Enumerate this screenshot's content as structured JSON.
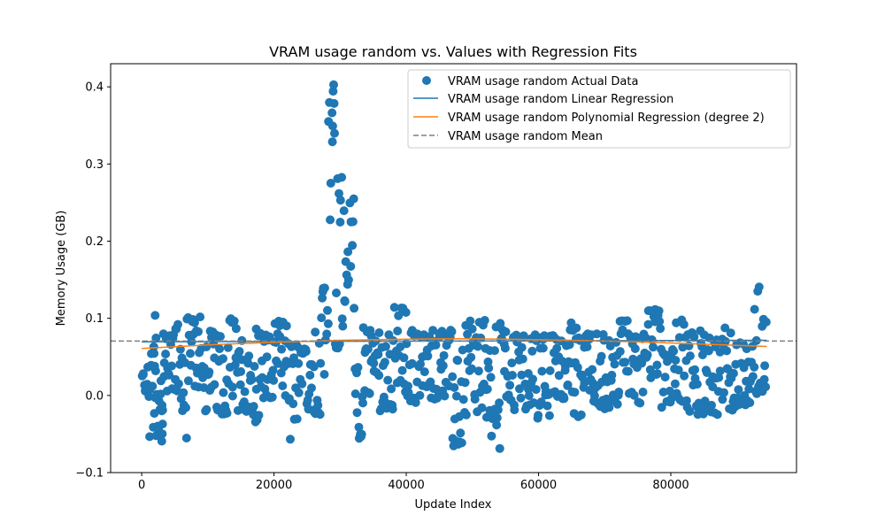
{
  "chart_data": {
    "type": "scatter",
    "title": "VRAM usage random vs. Values with Regression Fits",
    "xlabel": "Update Index",
    "ylabel": "Memory Usage (GB)",
    "xlim": [
      -4700,
      99000
    ],
    "ylim": [
      -0.1,
      0.43
    ],
    "x_ticks": [
      0,
      20000,
      40000,
      60000,
      80000
    ],
    "y_ticks": [
      -0.1,
      0.0,
      0.1,
      0.2,
      0.3,
      0.4
    ],
    "x_tick_labels": [
      "0",
      "20000",
      "40000",
      "60000",
      "80000"
    ],
    "y_tick_labels": [
      "−0.1",
      "0.0",
      "0.1",
      "0.2",
      "0.3",
      "0.4"
    ],
    "grid": false,
    "legend_position": "top-right",
    "legend": [
      "VRAM usage random Actual Data",
      "VRAM usage random Linear Regression",
      "VRAM usage random Polynomial Regression (degree 2)",
      "VRAM usage random Mean"
    ],
    "colors": {
      "scatter": "#1f77b4",
      "linear": "#1f77b4",
      "poly": "#ff7f0e",
      "mean": "#808080"
    },
    "series": [
      {
        "name": "VRAM usage random Actual Data",
        "kind": "scatter",
        "segments": [
          {
            "x": [
              0,
              1000
            ],
            "lo": 0.0,
            "hi": 0.04
          },
          {
            "x": [
              1000,
              2200
            ],
            "lo": -0.055,
            "hi": 0.07
          },
          {
            "x": [
              1800,
              2200
            ],
            "lo": 0.03,
            "hi": 0.117
          },
          {
            "x": [
              2200,
              3000
            ],
            "lo": -0.045,
            "hi": 0.05
          },
          {
            "x": [
              3000,
              3200
            ],
            "lo": -0.065,
            "hi": 0.0
          },
          {
            "x": [
              3200,
              5000
            ],
            "lo": 0.0,
            "hi": 0.08
          },
          {
            "x": [
              5000,
              6000
            ],
            "lo": -0.02,
            "hi": 0.095
          },
          {
            "x": [
              6000,
              6800
            ],
            "lo": -0.06,
            "hi": 0.05
          },
          {
            "x": [
              6800,
              9000
            ],
            "lo": 0.01,
            "hi": 0.105
          },
          {
            "x": [
              9000,
              13000
            ],
            "lo": -0.025,
            "hi": 0.085
          },
          {
            "x": [
              13000,
              14500
            ],
            "lo": -0.01,
            "hi": 0.1
          },
          {
            "x": [
              14500,
              17000
            ],
            "lo": -0.025,
            "hi": 0.075
          },
          {
            "x": [
              17000,
              18000
            ],
            "lo": -0.035,
            "hi": 0.092
          },
          {
            "x": [
              18000,
              20000
            ],
            "lo": -0.005,
            "hi": 0.085
          },
          {
            "x": [
              20000,
              22000
            ],
            "lo": -0.01,
            "hi": 0.1
          },
          {
            "x": [
              22000,
              23500
            ],
            "lo": -0.062,
            "hi": 0.07
          },
          {
            "x": [
              23500,
              25500
            ],
            "lo": -0.02,
            "hi": 0.065
          },
          {
            "x": [
              25500,
              27000
            ],
            "lo": -0.025,
            "hi": 0.085
          },
          {
            "x": [
              27000,
              28000
            ],
            "lo": 0.02,
            "hi": 0.14
          },
          {
            "x": [
              28000,
              28800
            ],
            "lo": 0.09,
            "hi": 0.38
          },
          {
            "x": [
              28800,
              29200
            ],
            "lo": 0.3,
            "hi": 0.405
          },
          {
            "x": [
              29200,
              30500
            ],
            "lo": 0.06,
            "hi": 0.3
          },
          {
            "x": [
              30500,
              31500
            ],
            "lo": 0.12,
            "hi": 0.25
          },
          {
            "x": [
              31500,
              32200
            ],
            "lo": 0.1,
            "hi": 0.26
          },
          {
            "x": [
              32200,
              33500
            ],
            "lo": -0.06,
            "hi": 0.04
          },
          {
            "x": [
              33500,
              36000
            ],
            "lo": 0.0,
            "hi": 0.09
          },
          {
            "x": [
              36000,
              38000
            ],
            "lo": -0.02,
            "hi": 0.08
          },
          {
            "x": [
              38000,
              40000
            ],
            "lo": -0.005,
            "hi": 0.118
          },
          {
            "x": [
              40000,
              43000
            ],
            "lo": -0.01,
            "hi": 0.085
          },
          {
            "x": [
              43000,
              47000
            ],
            "lo": -0.005,
            "hi": 0.085
          },
          {
            "x": [
              47000,
              48500
            ],
            "lo": -0.07,
            "hi": 0.05
          },
          {
            "x": [
              48500,
              52000
            ],
            "lo": -0.03,
            "hi": 0.098
          },
          {
            "x": [
              52000,
              53500
            ],
            "lo": -0.06,
            "hi": 0.06
          },
          {
            "x": [
              53500,
              54500
            ],
            "lo": -0.077,
            "hi": 0.095
          },
          {
            "x": [
              54500,
              56000
            ],
            "lo": -0.01,
            "hi": 0.085
          },
          {
            "x": [
              56000,
              59000
            ],
            "lo": -0.02,
            "hi": 0.08
          },
          {
            "x": [
              59000,
              62000
            ],
            "lo": -0.03,
            "hi": 0.08
          },
          {
            "x": [
              62000,
              64500
            ],
            "lo": -0.005,
            "hi": 0.085
          },
          {
            "x": [
              64500,
              66500
            ],
            "lo": -0.03,
            "hi": 0.095
          },
          {
            "x": [
              66500,
              70000
            ],
            "lo": -0.015,
            "hi": 0.08
          },
          {
            "x": [
              70000,
              72000
            ],
            "lo": -0.02,
            "hi": 0.075
          },
          {
            "x": [
              72000,
              74000
            ],
            "lo": -0.005,
            "hi": 0.098
          },
          {
            "x": [
              74000,
              76500
            ],
            "lo": -0.01,
            "hi": 0.08
          },
          {
            "x": [
              76500,
              78500
            ],
            "lo": 0.02,
            "hi": 0.112
          },
          {
            "x": [
              78500,
              80000
            ],
            "lo": -0.02,
            "hi": 0.06
          },
          {
            "x": [
              80000,
              82000
            ],
            "lo": -0.01,
            "hi": 0.098
          },
          {
            "x": [
              82000,
              86000
            ],
            "lo": -0.025,
            "hi": 0.085
          },
          {
            "x": [
              86000,
              88000
            ],
            "lo": -0.03,
            "hi": 0.075
          },
          {
            "x": [
              88000,
              90000
            ],
            "lo": -0.02,
            "hi": 0.088
          },
          {
            "x": [
              90000,
              92500
            ],
            "lo": -0.015,
            "hi": 0.075
          },
          {
            "x": [
              92500,
              93500
            ],
            "lo": 0.0,
            "hi": 0.145
          },
          {
            "x": [
              93500,
              94500
            ],
            "lo": -0.025,
            "hi": 0.1
          }
        ]
      },
      {
        "name": "VRAM usage random Linear Regression",
        "kind": "line",
        "x": [
          0,
          94500
        ],
        "y": [
          0.0695,
          0.0715
        ]
      },
      {
        "name": "VRAM usage random Polynomial Regression (degree 2)",
        "kind": "line",
        "x": [
          0,
          10000,
          20000,
          30000,
          40000,
          47500,
          55000,
          65000,
          75000,
          85000,
          94500
        ],
        "y": [
          0.061,
          0.0655,
          0.069,
          0.0715,
          0.073,
          0.0735,
          0.073,
          0.0715,
          0.0695,
          0.0665,
          0.0635
        ]
      },
      {
        "name": "VRAM usage random Mean",
        "kind": "hline",
        "y": 0.0705
      }
    ]
  }
}
